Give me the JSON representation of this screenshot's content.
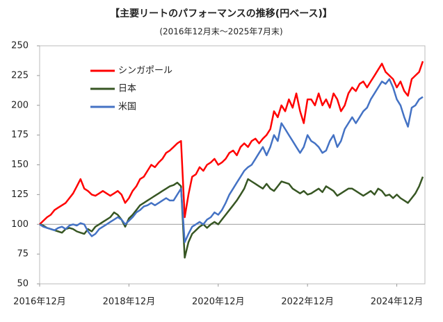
{
  "chart_data": {
    "type": "line",
    "title": "【主要リートのパフォーマンスの推移(円ベース)】",
    "subtitle": "(2016年12月末～2025年7月末)",
    "categories": [
      "2016年12月",
      null,
      null,
      null,
      null,
      null,
      null,
      null,
      null,
      null,
      null,
      null,
      null,
      null,
      null,
      null,
      null,
      null,
      null,
      null,
      null,
      null,
      null,
      null,
      "2018年12月",
      null,
      null,
      null,
      null,
      null,
      null,
      null,
      null,
      null,
      null,
      null,
      null,
      null,
      null,
      null,
      null,
      null,
      null,
      null,
      null,
      null,
      null,
      null,
      "2020年12月",
      null,
      null,
      null,
      null,
      null,
      null,
      null,
      null,
      null,
      null,
      null,
      null,
      null,
      null,
      null,
      null,
      null,
      null,
      null,
      null,
      null,
      null,
      null,
      "2022年12月",
      null,
      null,
      null,
      null,
      null,
      null,
      null,
      null,
      null,
      null,
      null,
      null,
      null,
      null,
      null,
      null,
      null,
      null,
      null,
      null,
      null,
      null,
      null,
      "2024年12月",
      null,
      null,
      null,
      null,
      null,
      null,
      null
    ],
    "series": [
      {
        "name": "シンガポール",
        "color": "#ff0000",
        "values": [
          100,
          103,
          106,
          108,
          112,
          114,
          116,
          118,
          122,
          126,
          132,
          138,
          130,
          128,
          125,
          124,
          126,
          128,
          126,
          124,
          126,
          128,
          125,
          118,
          122,
          128,
          132,
          138,
          140,
          145,
          150,
          148,
          152,
          155,
          160,
          162,
          165,
          168,
          170,
          106,
          125,
          140,
          142,
          148,
          145,
          150,
          152,
          155,
          150,
          152,
          155,
          160,
          162,
          158,
          165,
          168,
          165,
          170,
          172,
          168,
          172,
          175,
          180,
          195,
          190,
          200,
          195,
          205,
          198,
          210,
          195,
          185,
          205,
          205,
          200,
          210,
          200,
          205,
          198,
          210,
          205,
          195,
          200,
          210,
          215,
          212,
          218,
          220,
          215,
          220,
          225,
          230,
          235,
          228,
          225,
          222,
          215,
          220,
          212,
          208,
          222,
          225,
          228,
          237
        ]
      },
      {
        "name": "日本",
        "color": "#375623",
        "values": [
          100,
          99,
          97,
          96,
          95,
          94,
          93,
          96,
          97,
          96,
          94,
          93,
          92,
          96,
          94,
          98,
          100,
          102,
          104,
          106,
          110,
          108,
          104,
          98,
          105,
          108,
          112,
          116,
          118,
          120,
          122,
          124,
          126,
          128,
          130,
          132,
          133,
          135,
          132,
          72,
          85,
          92,
          95,
          98,
          100,
          97,
          100,
          102,
          100,
          104,
          108,
          112,
          116,
          120,
          125,
          130,
          138,
          136,
          134,
          132,
          130,
          134,
          130,
          128,
          132,
          136,
          135,
          134,
          130,
          128,
          126,
          128,
          125,
          126,
          128,
          130,
          127,
          132,
          130,
          128,
          124,
          126,
          128,
          130,
          130,
          128,
          126,
          124,
          126,
          128,
          125,
          130,
          128,
          124,
          125,
          122,
          125,
          122,
          120,
          118,
          122,
          126,
          132,
          140
        ]
      },
      {
        "name": "米国",
        "color": "#4472c4",
        "values": [
          100,
          98,
          97,
          96,
          95,
          97,
          98,
          96,
          99,
          100,
          99,
          101,
          100,
          94,
          90,
          92,
          96,
          98,
          100,
          102,
          104,
          106,
          104,
          100,
          103,
          106,
          110,
          112,
          115,
          116,
          118,
          116,
          118,
          120,
          122,
          120,
          120,
          125,
          130,
          85,
          92,
          98,
          100,
          102,
          100,
          104,
          106,
          110,
          108,
          112,
          118,
          125,
          130,
          135,
          140,
          145,
          148,
          150,
          155,
          160,
          165,
          158,
          165,
          175,
          170,
          185,
          180,
          175,
          170,
          165,
          160,
          165,
          175,
          170,
          168,
          165,
          160,
          162,
          170,
          175,
          165,
          170,
          180,
          185,
          190,
          185,
          190,
          195,
          198,
          205,
          210,
          215,
          220,
          218,
          222,
          215,
          205,
          200,
          190,
          182,
          198,
          200,
          205,
          207
        ]
      }
    ],
    "ylim": [
      50,
      250
    ],
    "yticks": [
      50,
      75,
      100,
      125,
      150,
      175,
      200,
      225,
      250
    ],
    "hline": 100,
    "legend": "upper-left",
    "grid": false
  }
}
